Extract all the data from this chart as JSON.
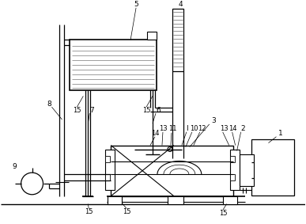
{
  "bg_color": "#ffffff",
  "fig_w": 3.87,
  "fig_h": 2.83,
  "dpi": 100
}
